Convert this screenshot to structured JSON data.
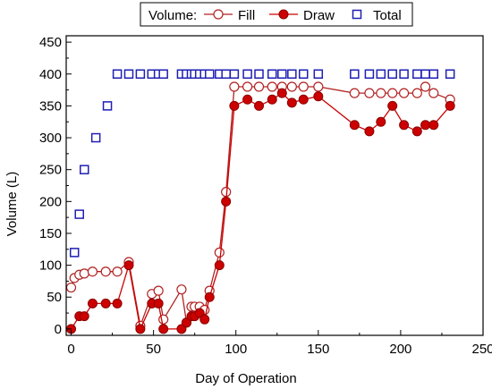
{
  "chart_data": {
    "type": "scatter",
    "xlabel": "Day of Operation",
    "ylabel": "Volume (L)",
    "xlim": [
      -3,
      250
    ],
    "ylim": [
      -10,
      460
    ],
    "xticks": [
      0,
      50,
      100,
      150,
      200,
      250
    ],
    "yticks": [
      0,
      50,
      100,
      150,
      200,
      250,
      300,
      350,
      400,
      450
    ],
    "grid": false,
    "legend_title": "Volume:",
    "legend_position": "top",
    "series": [
      {
        "name": "Fill",
        "marker": "open-circle",
        "line": true,
        "color": "#b22222",
        "x": [
          0,
          2,
          5,
          8,
          13,
          21,
          28,
          35,
          42,
          49,
          53,
          56,
          67,
          70,
          73,
          75,
          78,
          81,
          84,
          90,
          94,
          99,
          107,
          114,
          122,
          128,
          134,
          141,
          150,
          172,
          181,
          188,
          195,
          202,
          210,
          215,
          220,
          230
        ],
        "y": [
          65,
          80,
          85,
          87,
          90,
          90,
          90,
          105,
          5,
          55,
          60,
          15,
          62,
          10,
          35,
          35,
          35,
          30,
          60,
          120,
          215,
          380,
          380,
          380,
          380,
          380,
          380,
          380,
          380,
          370,
          370,
          370,
          370,
          370,
          370,
          380,
          370,
          360
        ]
      },
      {
        "name": "Draw",
        "marker": "filled-circle",
        "line": true,
        "color": "#cc0000",
        "x": [
          0,
          5,
          8,
          13,
          21,
          28,
          35,
          42,
          49,
          53,
          56,
          67,
          70,
          73,
          75,
          78,
          81,
          84,
          90,
          94,
          99,
          107,
          114,
          122,
          128,
          134,
          141,
          150,
          172,
          181,
          188,
          195,
          202,
          210,
          215,
          220,
          230
        ],
        "y": [
          0,
          20,
          20,
          40,
          40,
          40,
          100,
          0,
          40,
          40,
          0,
          0,
          10,
          20,
          20,
          25,
          15,
          50,
          100,
          200,
          350,
          360,
          350,
          360,
          370,
          355,
          360,
          365,
          320,
          310,
          325,
          350,
          320,
          310,
          320,
          320,
          350
        ]
      },
      {
        "name": "Total",
        "marker": "open-square",
        "line": false,
        "color": "#1f1fb4",
        "x": [
          2,
          5,
          8,
          15,
          22,
          28,
          35,
          42,
          49,
          53,
          56,
          67,
          70,
          73,
          75,
          78,
          81,
          84,
          90,
          94,
          99,
          107,
          114,
          122,
          128,
          134,
          141,
          150,
          172,
          181,
          188,
          195,
          202,
          210,
          215,
          220,
          230
        ],
        "y": [
          120,
          180,
          250,
          300,
          350,
          400,
          400,
          400,
          400,
          400,
          400,
          400,
          400,
          400,
          400,
          400,
          400,
          400,
          400,
          400,
          400,
          400,
          400,
          400,
          400,
          400,
          400,
          400,
          400,
          400,
          400,
          400,
          400,
          400,
          400,
          400,
          400
        ]
      }
    ]
  }
}
